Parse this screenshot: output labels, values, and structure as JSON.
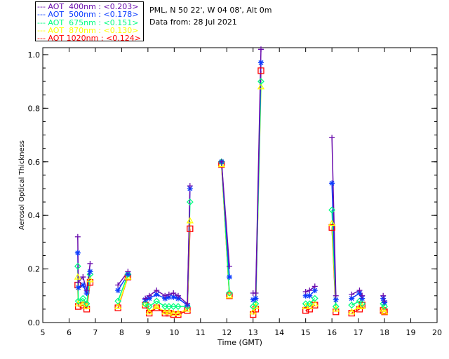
{
  "legend": [
    {
      "label": "AOT  400nm : <0.203>",
      "color": "#6a0dad"
    },
    {
      "label": "AOT  500nm : <0.178>",
      "color": "#0a3cff"
    },
    {
      "label": "AOT  675nm : <0.151>",
      "color": "#00ff7f"
    },
    {
      "label": "AOT  870nm : <0.130>",
      "color": "#ffff00"
    },
    {
      "label": "AOT 1020nm : <0.124>",
      "color": "#ff0000"
    }
  ],
  "info": {
    "location": "PML, N 50 22', W 04 08', Alt 0m",
    "date": "Data from: 28 Jul 2021"
  },
  "chart_data": {
    "type": "scatter",
    "title": "",
    "xlabel": "Time (GMT)",
    "ylabel": "Aerosol Optical Thickness",
    "xlim": [
      5,
      20
    ],
    "ylim": [
      0,
      1.026
    ],
    "xticks": [
      5,
      6,
      7,
      8,
      9,
      10,
      11,
      12,
      13,
      14,
      15,
      16,
      17,
      18,
      19,
      20
    ],
    "yticks": [
      "0.0",
      "0.2",
      "0.4",
      "0.6",
      "0.8",
      "1.0"
    ],
    "series_names": [
      "AOT 400nm",
      "AOT 500nm",
      "AOT 675nm",
      "AOT 870nm",
      "AOT 1020nm"
    ],
    "markers": [
      "plus",
      "asterisk",
      "diamond",
      "triangle",
      "square"
    ],
    "x": [
      6.33,
      6.35,
      6.53,
      6.67,
      6.8,
      7.86,
      8.24,
      8.9,
      9.05,
      9.33,
      9.65,
      9.8,
      9.97,
      10.15,
      10.5,
      10.6,
      11.8,
      12.1,
      13.0,
      13.1,
      13.3,
      15.0,
      15.15,
      15.35,
      16.0,
      16.15,
      16.75,
      17.05,
      17.15,
      17.95,
      18.0
    ],
    "series": [
      {
        "name": "AOT 400nm",
        "values": [
          0.32,
          0.15,
          0.17,
          0.12,
          0.22,
          0.14,
          0.19,
          0.09,
          0.1,
          0.12,
          0.1,
          0.105,
          0.11,
          0.1,
          0.07,
          0.51,
          0.6,
          0.21,
          0.11,
          0.11,
          1.02,
          0.115,
          0.12,
          0.135,
          0.69,
          0.1,
          0.105,
          0.12,
          0.1,
          0.1,
          0.08
        ]
      },
      {
        "name": "AOT 500nm",
        "values": [
          0.26,
          0.13,
          0.14,
          0.11,
          0.19,
          0.12,
          0.18,
          0.085,
          0.09,
          0.105,
          0.09,
          0.095,
          0.095,
          0.09,
          0.065,
          0.5,
          0.6,
          0.17,
          0.085,
          0.09,
          0.97,
          0.1,
          0.1,
          0.12,
          0.52,
          0.085,
          0.09,
          0.11,
          0.09,
          0.09,
          0.075
        ]
      },
      {
        "name": "AOT 675nm",
        "values": [
          0.21,
          0.08,
          0.09,
          0.07,
          0.18,
          0.08,
          0.18,
          0.07,
          0.06,
          0.08,
          0.06,
          0.06,
          0.06,
          0.06,
          0.06,
          0.45,
          0.6,
          0.11,
          0.06,
          0.07,
          0.9,
          0.07,
          0.07,
          0.09,
          0.42,
          0.06,
          0.065,
          0.08,
          0.07,
          0.07,
          0.06
        ]
      },
      {
        "name": "AOT 870nm",
        "values": [
          0.17,
          0.07,
          0.07,
          0.06,
          0.16,
          0.06,
          0.17,
          0.07,
          0.04,
          0.06,
          0.04,
          0.04,
          0.035,
          0.035,
          0.05,
          0.38,
          0.59,
          0.1,
          0.04,
          0.06,
          0.88,
          0.06,
          0.06,
          0.07,
          0.37,
          0.05,
          0.04,
          0.06,
          0.06,
          0.05,
          0.04
        ]
      },
      {
        "name": "AOT 1020nm",
        "values": [
          0.14,
          0.06,
          0.065,
          0.05,
          0.15,
          0.055,
          0.17,
          0.065,
          0.035,
          0.055,
          0.035,
          0.035,
          0.03,
          0.03,
          0.045,
          0.35,
          0.59,
          0.1,
          0.03,
          0.05,
          0.94,
          0.045,
          0.05,
          0.065,
          0.355,
          0.04,
          0.035,
          0.05,
          0.065,
          0.045,
          0.04
        ]
      }
    ],
    "grid": false,
    "legend_position": "top-left"
  }
}
